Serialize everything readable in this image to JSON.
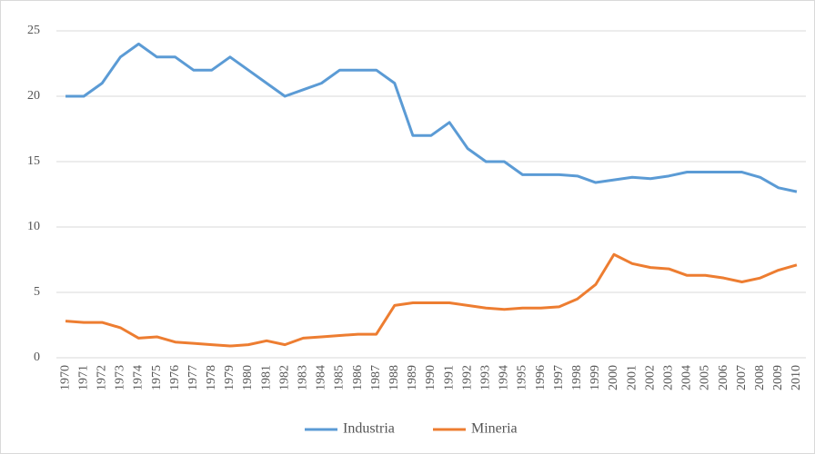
{
  "chart_data": {
    "type": "line",
    "categories": [
      "1970",
      "1971",
      "1972",
      "1973",
      "1974",
      "1975",
      "1976",
      "1977",
      "1978",
      "1979",
      "1980",
      "1981",
      "1982",
      "1983",
      "1984",
      "1985",
      "1986",
      "1987",
      "1988",
      "1989",
      "1990",
      "1991",
      "1992",
      "1993",
      "1994",
      "1995",
      "1996",
      "1997",
      "1998",
      "1999",
      "2000",
      "2001",
      "2002",
      "2003",
      "2004",
      "2005",
      "2006",
      "2007",
      "2008",
      "2009",
      "2010"
    ],
    "series": [
      {
        "name": "Industria",
        "color": "#5b9bd5",
        "values": [
          20,
          20,
          21,
          23,
          24,
          23,
          23,
          22,
          22,
          23,
          22,
          21,
          20,
          20.5,
          21,
          22,
          22,
          22,
          21,
          17,
          17,
          18,
          16,
          15,
          15,
          14,
          14,
          14,
          13.9,
          13.4,
          13.6,
          13.8,
          13.7,
          13.9,
          14.2,
          14.2,
          14.2,
          14.2,
          13.8,
          13,
          12.7
        ]
      },
      {
        "name": "Mineria",
        "color": "#ed7d31",
        "values": [
          2.8,
          2.7,
          2.7,
          2.3,
          1.5,
          1.6,
          1.2,
          1.1,
          1.0,
          0.9,
          1.0,
          1.3,
          1.0,
          1.5,
          1.6,
          1.7,
          1.8,
          1.8,
          4.0,
          4.2,
          4.2,
          4.2,
          4.0,
          3.8,
          3.7,
          3.8,
          3.8,
          3.9,
          4.5,
          5.6,
          7.9,
          7.2,
          6.9,
          6.8,
          6.3,
          6.3,
          6.1,
          5.8,
          6.1,
          6.7,
          7.1
        ]
      }
    ],
    "ylim": [
      0,
      25
    ],
    "yticks": [
      0,
      5,
      10,
      15,
      20,
      25
    ],
    "grid": true,
    "legend": "bottom"
  }
}
